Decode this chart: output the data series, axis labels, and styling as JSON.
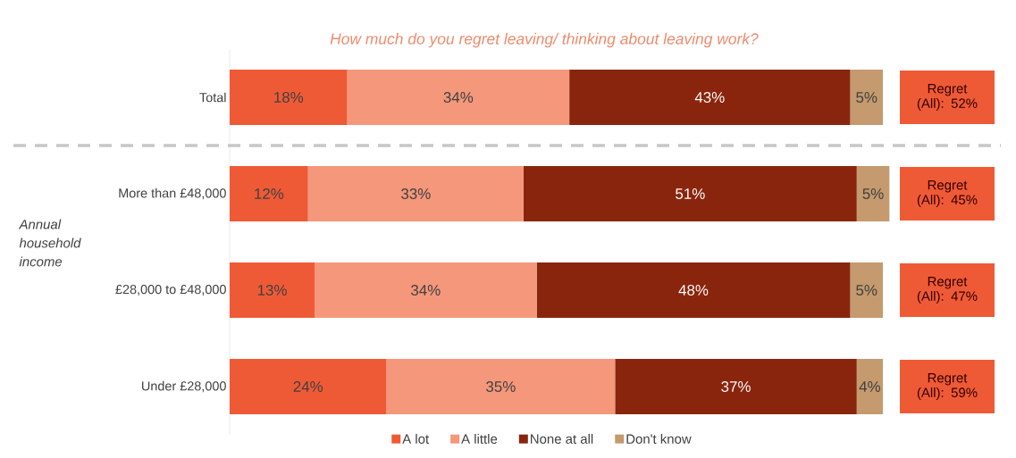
{
  "chart_data": {
    "type": "bar",
    "orientation": "horizontal",
    "stacked": true,
    "title": "How much do you regret leaving/ thinking about leaving work?",
    "ylabel": "Annual household income",
    "categories": [
      "Total",
      "More than £48,000",
      "£28,000 to £48,000",
      "Under £28,000"
    ],
    "series": [
      {
        "name": "A lot",
        "color": "#ef5a36",
        "values": [
          18,
          12,
          13,
          24
        ],
        "value_labels": [
          "18%",
          "12%",
          "13%",
          "24%"
        ]
      },
      {
        "name": "A little",
        "color": "#f4977b",
        "values": [
          34,
          33,
          34,
          35
        ],
        "value_labels": [
          "34%",
          "33%",
          "34%",
          "35%"
        ]
      },
      {
        "name": "None at all",
        "color": "#8a250d",
        "values": [
          43,
          51,
          48,
          37
        ],
        "value_labels": [
          "43%",
          "51%",
          "48%",
          "37%"
        ]
      },
      {
        "name": "Don't know",
        "color": "#c49a6e",
        "values": [
          5,
          5,
          5,
          4
        ],
        "value_labels": [
          "5%",
          "5%",
          "5%",
          "4%"
        ]
      }
    ],
    "xlim": [
      0,
      101
    ],
    "tick_labels": "y",
    "annotations": [
      "Regret (All): 52%",
      "Regret (All): 45%",
      "Regret (All): 47%",
      "Regret (All): 59%"
    ],
    "legend": "bottom"
  }
}
